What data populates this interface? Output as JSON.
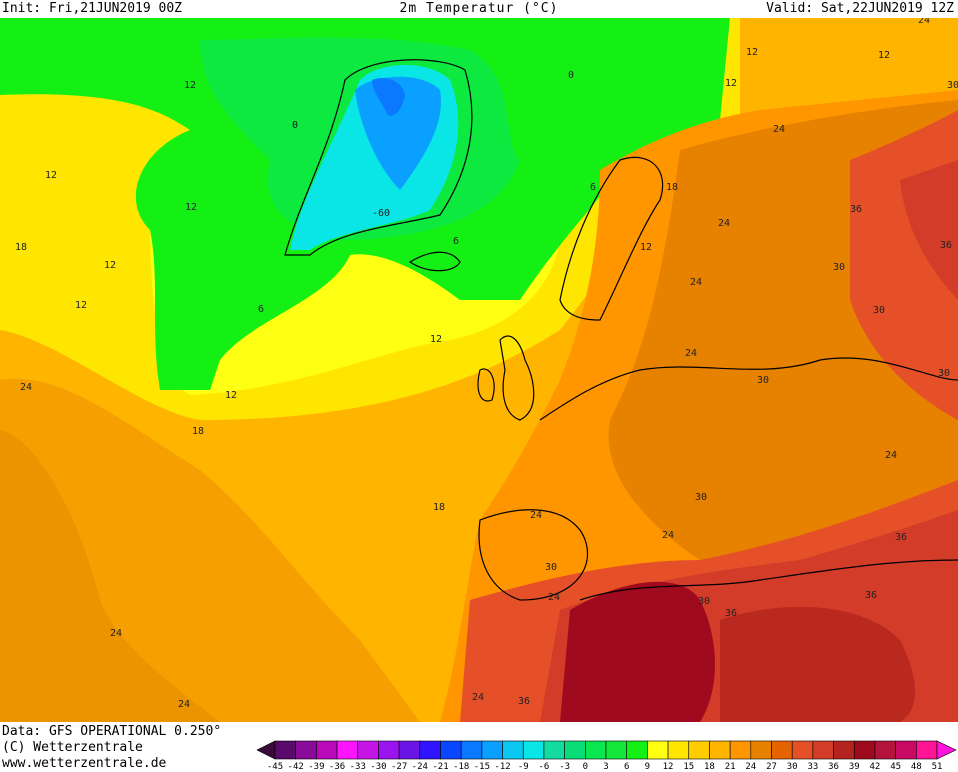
{
  "header": {
    "init": "Init: Fri,21JUN2019 00Z",
    "title": "2m Temperatur (°C)",
    "valid": "Valid: Sat,22JUN2019 12Z"
  },
  "footer": {
    "data_source": "Data: GFS OPERATIONAL 0.250°",
    "copyright": "(C) Wetterzentrale",
    "website": "www.wetterzentrale.de"
  },
  "legend": {
    "unit": "°C",
    "ticks": [
      -45,
      -42,
      -39,
      -36,
      -33,
      -30,
      -27,
      -24,
      -21,
      -18,
      -15,
      -12,
      -9,
      -6,
      -3,
      0,
      3,
      6,
      9,
      12,
      15,
      18,
      21,
      24,
      27,
      30,
      33,
      36,
      39,
      42,
      45,
      48,
      51
    ],
    "colors": [
      "#5a0a6a",
      "#8a0a9a",
      "#b80ab8",
      "#ff14ff",
      "#c414e6",
      "#9a14f0",
      "#6a14e6",
      "#3014ff",
      "#0a46ff",
      "#0a78ff",
      "#0aa0ff",
      "#0ac8f0",
      "#0ae6e6",
      "#14dca0",
      "#0adc78",
      "#0ae650",
      "#14e63c",
      "#14f014",
      "#ffff14",
      "#ffe600",
      "#ffcc00",
      "#ffb400",
      "#ff9600",
      "#e68200",
      "#e66400",
      "#e65028",
      "#d23c28",
      "#b4241e",
      "#a00a1e",
      "#b4143c",
      "#c80a64",
      "#ff1496"
    ],
    "below_color": "#3a0a3a",
    "above_color": "#ff14dc"
  },
  "map": {
    "contour_labels": [
      "12",
      "12",
      "12",
      "18",
      "12",
      "6",
      "0",
      "0",
      "-60",
      "6",
      "6",
      "12",
      "12",
      "12",
      "12",
      "24",
      "24",
      "12",
      "18",
      "24",
      "24",
      "30",
      "36",
      "30",
      "30",
      "24",
      "30",
      "24",
      "30",
      "36",
      "12",
      "18",
      "24",
      "30",
      "18",
      "24",
      "24",
      "30",
      "36",
      "30",
      "36",
      "36",
      "24",
      "24",
      "24",
      "36",
      "24",
      "12"
    ]
  }
}
